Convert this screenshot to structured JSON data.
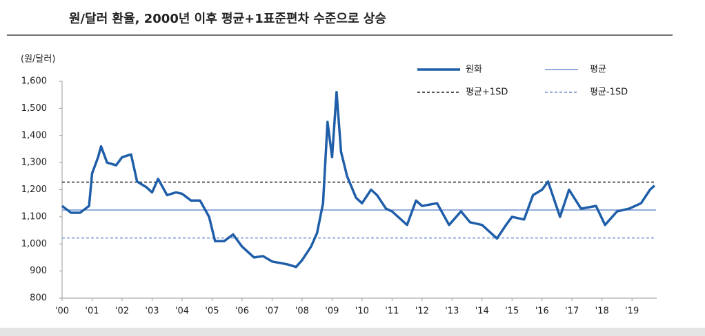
{
  "chart_data": {
    "type": "line",
    "title": "원/달러 환율, 2000년 이후 평균+1표준편차 수준으로 상승",
    "y_label": "(원/달러)",
    "x": [
      2000.0,
      2000.3,
      2000.6,
      2000.9,
      2001.0,
      2001.2,
      2001.3,
      2001.5,
      2001.8,
      2002.0,
      2002.3,
      2002.5,
      2002.8,
      2003.0,
      2003.2,
      2003.5,
      2003.8,
      2004.0,
      2004.3,
      2004.6,
      2004.9,
      2005.1,
      2005.4,
      2005.7,
      2006.0,
      2006.4,
      2006.7,
      2007.0,
      2007.5,
      2007.8,
      2008.0,
      2008.3,
      2008.5,
      2008.7,
      2008.85,
      2009.0,
      2009.15,
      2009.3,
      2009.5,
      2009.8,
      2010.0,
      2010.3,
      2010.5,
      2010.8,
      2011.0,
      2011.5,
      2011.8,
      2012.0,
      2012.5,
      2012.9,
      2013.3,
      2013.6,
      2014.0,
      2014.5,
      2014.8,
      2015.0,
      2015.4,
      2015.7,
      2016.0,
      2016.2,
      2016.6,
      2016.9,
      2017.3,
      2017.8,
      2018.1,
      2018.5,
      2018.9,
      2019.3,
      2019.6,
      2019.75
    ],
    "series": [
      {
        "name": "원화",
        "color": "#1f5ea8",
        "values": [
          1140,
          1115,
          1115,
          1140,
          1260,
          1320,
          1360,
          1300,
          1290,
          1320,
          1330,
          1230,
          1210,
          1190,
          1240,
          1180,
          1190,
          1185,
          1160,
          1160,
          1100,
          1010,
          1010,
          1035,
          990,
          950,
          955,
          935,
          925,
          915,
          940,
          990,
          1040,
          1150,
          1450,
          1320,
          1560,
          1340,
          1250,
          1170,
          1150,
          1200,
          1180,
          1130,
          1120,
          1070,
          1160,
          1140,
          1150,
          1070,
          1120,
          1080,
          1070,
          1020,
          1070,
          1100,
          1090,
          1180,
          1200,
          1230,
          1100,
          1200,
          1130,
          1140,
          1070,
          1120,
          1130,
          1150,
          1200,
          1215
        ]
      }
    ],
    "reference_lines": [
      {
        "name": "평균",
        "value": 1125,
        "color": "#6f8fcf",
        "dashed": false
      },
      {
        "name": "평균+1SD",
        "value": 1228,
        "color": "#222222",
        "dashed": true
      },
      {
        "name": "평균-1SD",
        "value": 1022,
        "color": "#6f8fcf",
        "dashed": true
      }
    ],
    "xlim": [
      2000,
      2019.8
    ],
    "xticks": [
      {
        "value": 2000,
        "label": "'00"
      },
      {
        "value": 2001,
        "label": "'01"
      },
      {
        "value": 2002,
        "label": "'02"
      },
      {
        "value": 2003,
        "label": "'03"
      },
      {
        "value": 2004,
        "label": "'04"
      },
      {
        "value": 2005,
        "label": "'05"
      },
      {
        "value": 2006,
        "label": "'06"
      },
      {
        "value": 2007,
        "label": "'07"
      },
      {
        "value": 2008,
        "label": "'08"
      },
      {
        "value": 2009,
        "label": "'09"
      },
      {
        "value": 2010,
        "label": "'10"
      },
      {
        "value": 2011,
        "label": "'11"
      },
      {
        "value": 2012,
        "label": "'12"
      },
      {
        "value": 2013,
        "label": "'13"
      },
      {
        "value": 2014,
        "label": "'14"
      },
      {
        "value": 2015,
        "label": "'15"
      },
      {
        "value": 2016,
        "label": "'16"
      },
      {
        "value": 2017,
        "label": "'17"
      },
      {
        "value": 2018,
        "label": "'18"
      },
      {
        "value": 2019,
        "label": "'19"
      }
    ],
    "ylim": [
      800,
      1600
    ],
    "yticks": [
      800,
      900,
      {
        "value": 1000,
        "label": "1,000"
      },
      {
        "value": 1100,
        "label": "1,100"
      },
      {
        "value": 1200,
        "label": "1,200"
      },
      {
        "value": 1300,
        "label": "1,300"
      },
      {
        "value": 1400,
        "label": "1,400"
      },
      {
        "value": 1500,
        "label": "1,500"
      },
      {
        "value": 1600,
        "label": "1,600"
      }
    ],
    "legend": "upper right"
  }
}
